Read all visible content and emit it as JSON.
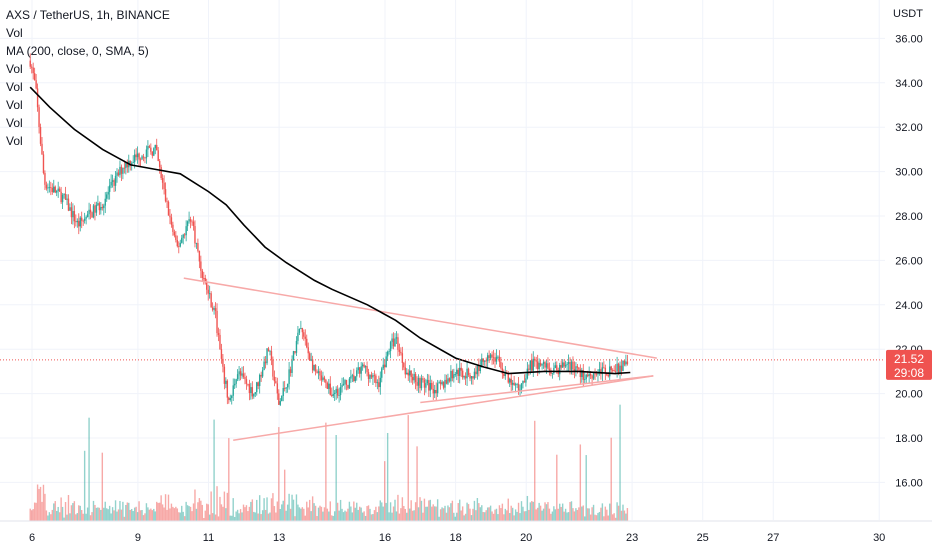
{
  "chart_data": {
    "type": "candlestick",
    "title": "AXS / TetherUS, 1h, BINANCE",
    "legend": [
      "Vol",
      "MA (200, close, 0, SMA, 5)",
      "Vol",
      "Vol",
      "Vol",
      "Vol",
      "Vol"
    ],
    "currency_label": "USDT",
    "x_tick_labels": [
      "6",
      "9",
      "11",
      "13",
      "16",
      "18",
      "20",
      "23",
      "25",
      "27",
      "30"
    ],
    "x_tick_days": [
      6,
      9,
      11,
      13,
      16,
      18,
      20,
      23,
      25,
      27,
      30
    ],
    "xlim": [
      5.9,
      30.2
    ],
    "y_tick_labels": [
      "16.00",
      "18.00",
      "20.00",
      "22.00",
      "24.00",
      "26.00",
      "28.00",
      "30.00",
      "32.00",
      "34.00",
      "36.00"
    ],
    "y_ticks": [
      16,
      18,
      20,
      22,
      24,
      26,
      28,
      30,
      32,
      34,
      36
    ],
    "ylim": [
      14.6,
      36.8
    ],
    "grid": true,
    "last_price": "21.52",
    "last_price_value": 21.52,
    "countdown": "29:08",
    "up_color": "#26a69a",
    "down_color": "#ef5350",
    "ma_color": "#000000",
    "trendline_color": "#f7a9a8",
    "price_path": [
      [
        5.95,
        35.0
      ],
      [
        6.1,
        33.8
      ],
      [
        6.35,
        29.5
      ],
      [
        6.9,
        28.8
      ],
      [
        7.3,
        27.6
      ],
      [
        8.0,
        28.6
      ],
      [
        8.6,
        30.3
      ],
      [
        9.1,
        30.8
      ],
      [
        9.5,
        31.0
      ],
      [
        9.75,
        29.0
      ],
      [
        10.1,
        26.5
      ],
      [
        10.5,
        28.0
      ],
      [
        10.8,
        25.5
      ],
      [
        11.2,
        23.5
      ],
      [
        11.4,
        21.0
      ],
      [
        11.6,
        19.5
      ],
      [
        11.8,
        21.0
      ],
      [
        12.3,
        20.0
      ],
      [
        12.7,
        22.0
      ],
      [
        13.0,
        19.5
      ],
      [
        13.3,
        21.0
      ],
      [
        13.6,
        23.0
      ],
      [
        14.0,
        21.0
      ],
      [
        14.5,
        20.0
      ],
      [
        15.0,
        20.5
      ],
      [
        15.4,
        21.2
      ],
      [
        15.8,
        20.4
      ],
      [
        16.1,
        22.0
      ],
      [
        16.3,
        22.5
      ],
      [
        16.6,
        21.0
      ],
      [
        17.0,
        20.5
      ],
      [
        17.5,
        20.2
      ],
      [
        18.0,
        21.0
      ],
      [
        18.5,
        20.8
      ],
      [
        18.9,
        21.8
      ],
      [
        19.2,
        21.5
      ],
      [
        19.5,
        20.5
      ],
      [
        19.8,
        20.2
      ],
      [
        20.1,
        21.3
      ],
      [
        20.5,
        21.3
      ],
      [
        20.8,
        21.0
      ],
      [
        21.2,
        21.4
      ],
      [
        21.6,
        20.8
      ],
      [
        22.1,
        21.0
      ],
      [
        22.6,
        21.1
      ],
      [
        22.9,
        21.52
      ]
    ],
    "ma200": [
      [
        5.95,
        33.8
      ],
      [
        6.5,
        32.9
      ],
      [
        7.2,
        31.9
      ],
      [
        8.0,
        31.0
      ],
      [
        8.8,
        30.3
      ],
      [
        9.5,
        30.1
      ],
      [
        10.2,
        29.9
      ],
      [
        11.0,
        29.1
      ],
      [
        11.5,
        28.5
      ],
      [
        12.0,
        27.6
      ],
      [
        12.6,
        26.6
      ],
      [
        13.2,
        25.9
      ],
      [
        14.0,
        25.1
      ],
      [
        14.5,
        24.7
      ],
      [
        15.5,
        24.0
      ],
      [
        16.3,
        23.3
      ],
      [
        17.0,
        22.5
      ],
      [
        18.0,
        21.6
      ],
      [
        18.8,
        21.2
      ],
      [
        19.5,
        20.9
      ],
      [
        20.5,
        21.0
      ],
      [
        21.5,
        21.0
      ],
      [
        22.5,
        20.9
      ],
      [
        22.95,
        20.95
      ]
    ],
    "trendlines": [
      {
        "from": [
          10.3,
          25.2
        ],
        "to": [
          23.7,
          21.6
        ]
      },
      {
        "from": [
          11.7,
          17.9
        ],
        "to": [
          23.6,
          20.8
        ]
      },
      {
        "from": [
          17.0,
          19.6
        ],
        "to": [
          23.6,
          20.8
        ]
      }
    ]
  }
}
